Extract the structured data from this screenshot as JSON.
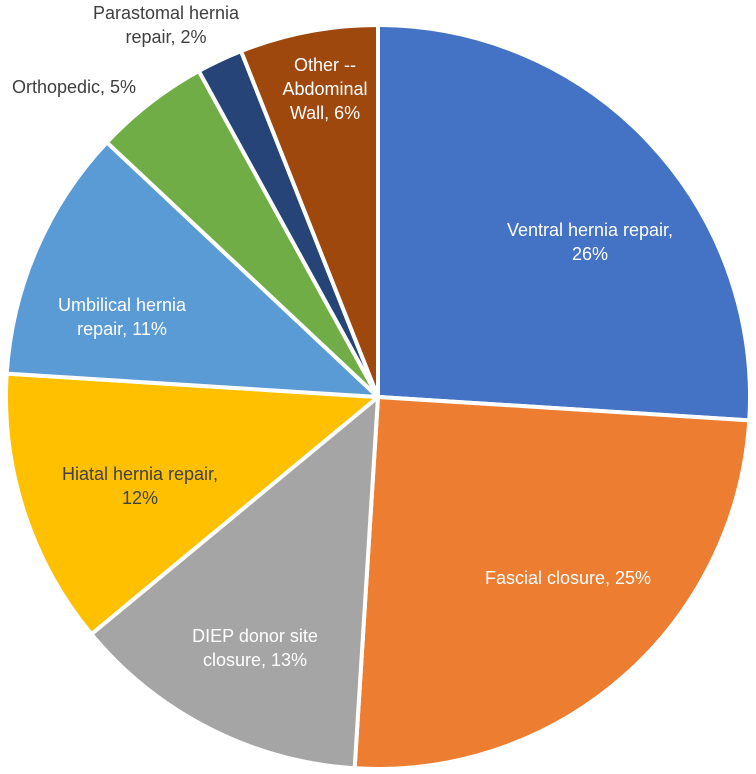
{
  "chart_data": {
    "type": "pie",
    "title": "",
    "slices": [
      {
        "label_lines": [
          "Ventral hernia repair,",
          "26%"
        ],
        "category": "Ventral hernia repair",
        "value": 26,
        "color": "#4472C4",
        "label_color": "#ffffff",
        "label_position": "inside"
      },
      {
        "label_lines": [
          "Fascial closure, 25%"
        ],
        "category": "Fascial closure",
        "value": 25,
        "color": "#ED7D31",
        "label_color": "#ffffff",
        "label_position": "inside"
      },
      {
        "label_lines": [
          "DIEP donor site",
          "closure, 13%"
        ],
        "category": "DIEP donor site closure",
        "value": 13,
        "color": "#A5A5A5",
        "label_color": "#ffffff",
        "label_position": "inside"
      },
      {
        "label_lines": [
          "Hiatal hernia repair,",
          "12%"
        ],
        "category": "Hiatal hernia repair",
        "value": 12,
        "color": "#FFC000",
        "label_color": "#404040",
        "label_position": "inside"
      },
      {
        "label_lines": [
          "Umbilical hernia",
          "repair, 11%"
        ],
        "category": "Umbilical hernia repair",
        "value": 11,
        "color": "#5B9BD5",
        "label_color": "#ffffff",
        "label_position": "inside"
      },
      {
        "label_lines": [
          "Orthopedic, 5%"
        ],
        "category": "Orthopedic",
        "value": 5,
        "color": "#70AD47",
        "label_color": "#404040",
        "label_position": "outside"
      },
      {
        "label_lines": [
          "Parastomal hernia",
          "repair, 2%"
        ],
        "category": "Parastomal hernia repair",
        "value": 2,
        "color": "#264478",
        "label_color": "#404040",
        "label_position": "outside"
      },
      {
        "label_lines": [
          "Other --",
          "Abdominal",
          "Wall, 6%"
        ],
        "category": "Other -- Abdominal Wall",
        "value": 6,
        "color": "#9E480E",
        "label_color": "#ffffff",
        "label_position": "inside"
      }
    ]
  }
}
